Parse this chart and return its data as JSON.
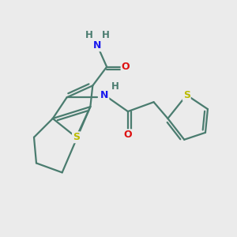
{
  "background_color": "#ebebeb",
  "bond_color": "#4a7c6f",
  "N_color": "#1a1aee",
  "O_color": "#dd1111",
  "S_color": "#bbbb00",
  "H_color": "#4a7c6f",
  "figsize": [
    3.0,
    3.0
  ],
  "dpi": 100,
  "xlim": [
    0,
    10
  ],
  "ylim": [
    0,
    10
  ]
}
